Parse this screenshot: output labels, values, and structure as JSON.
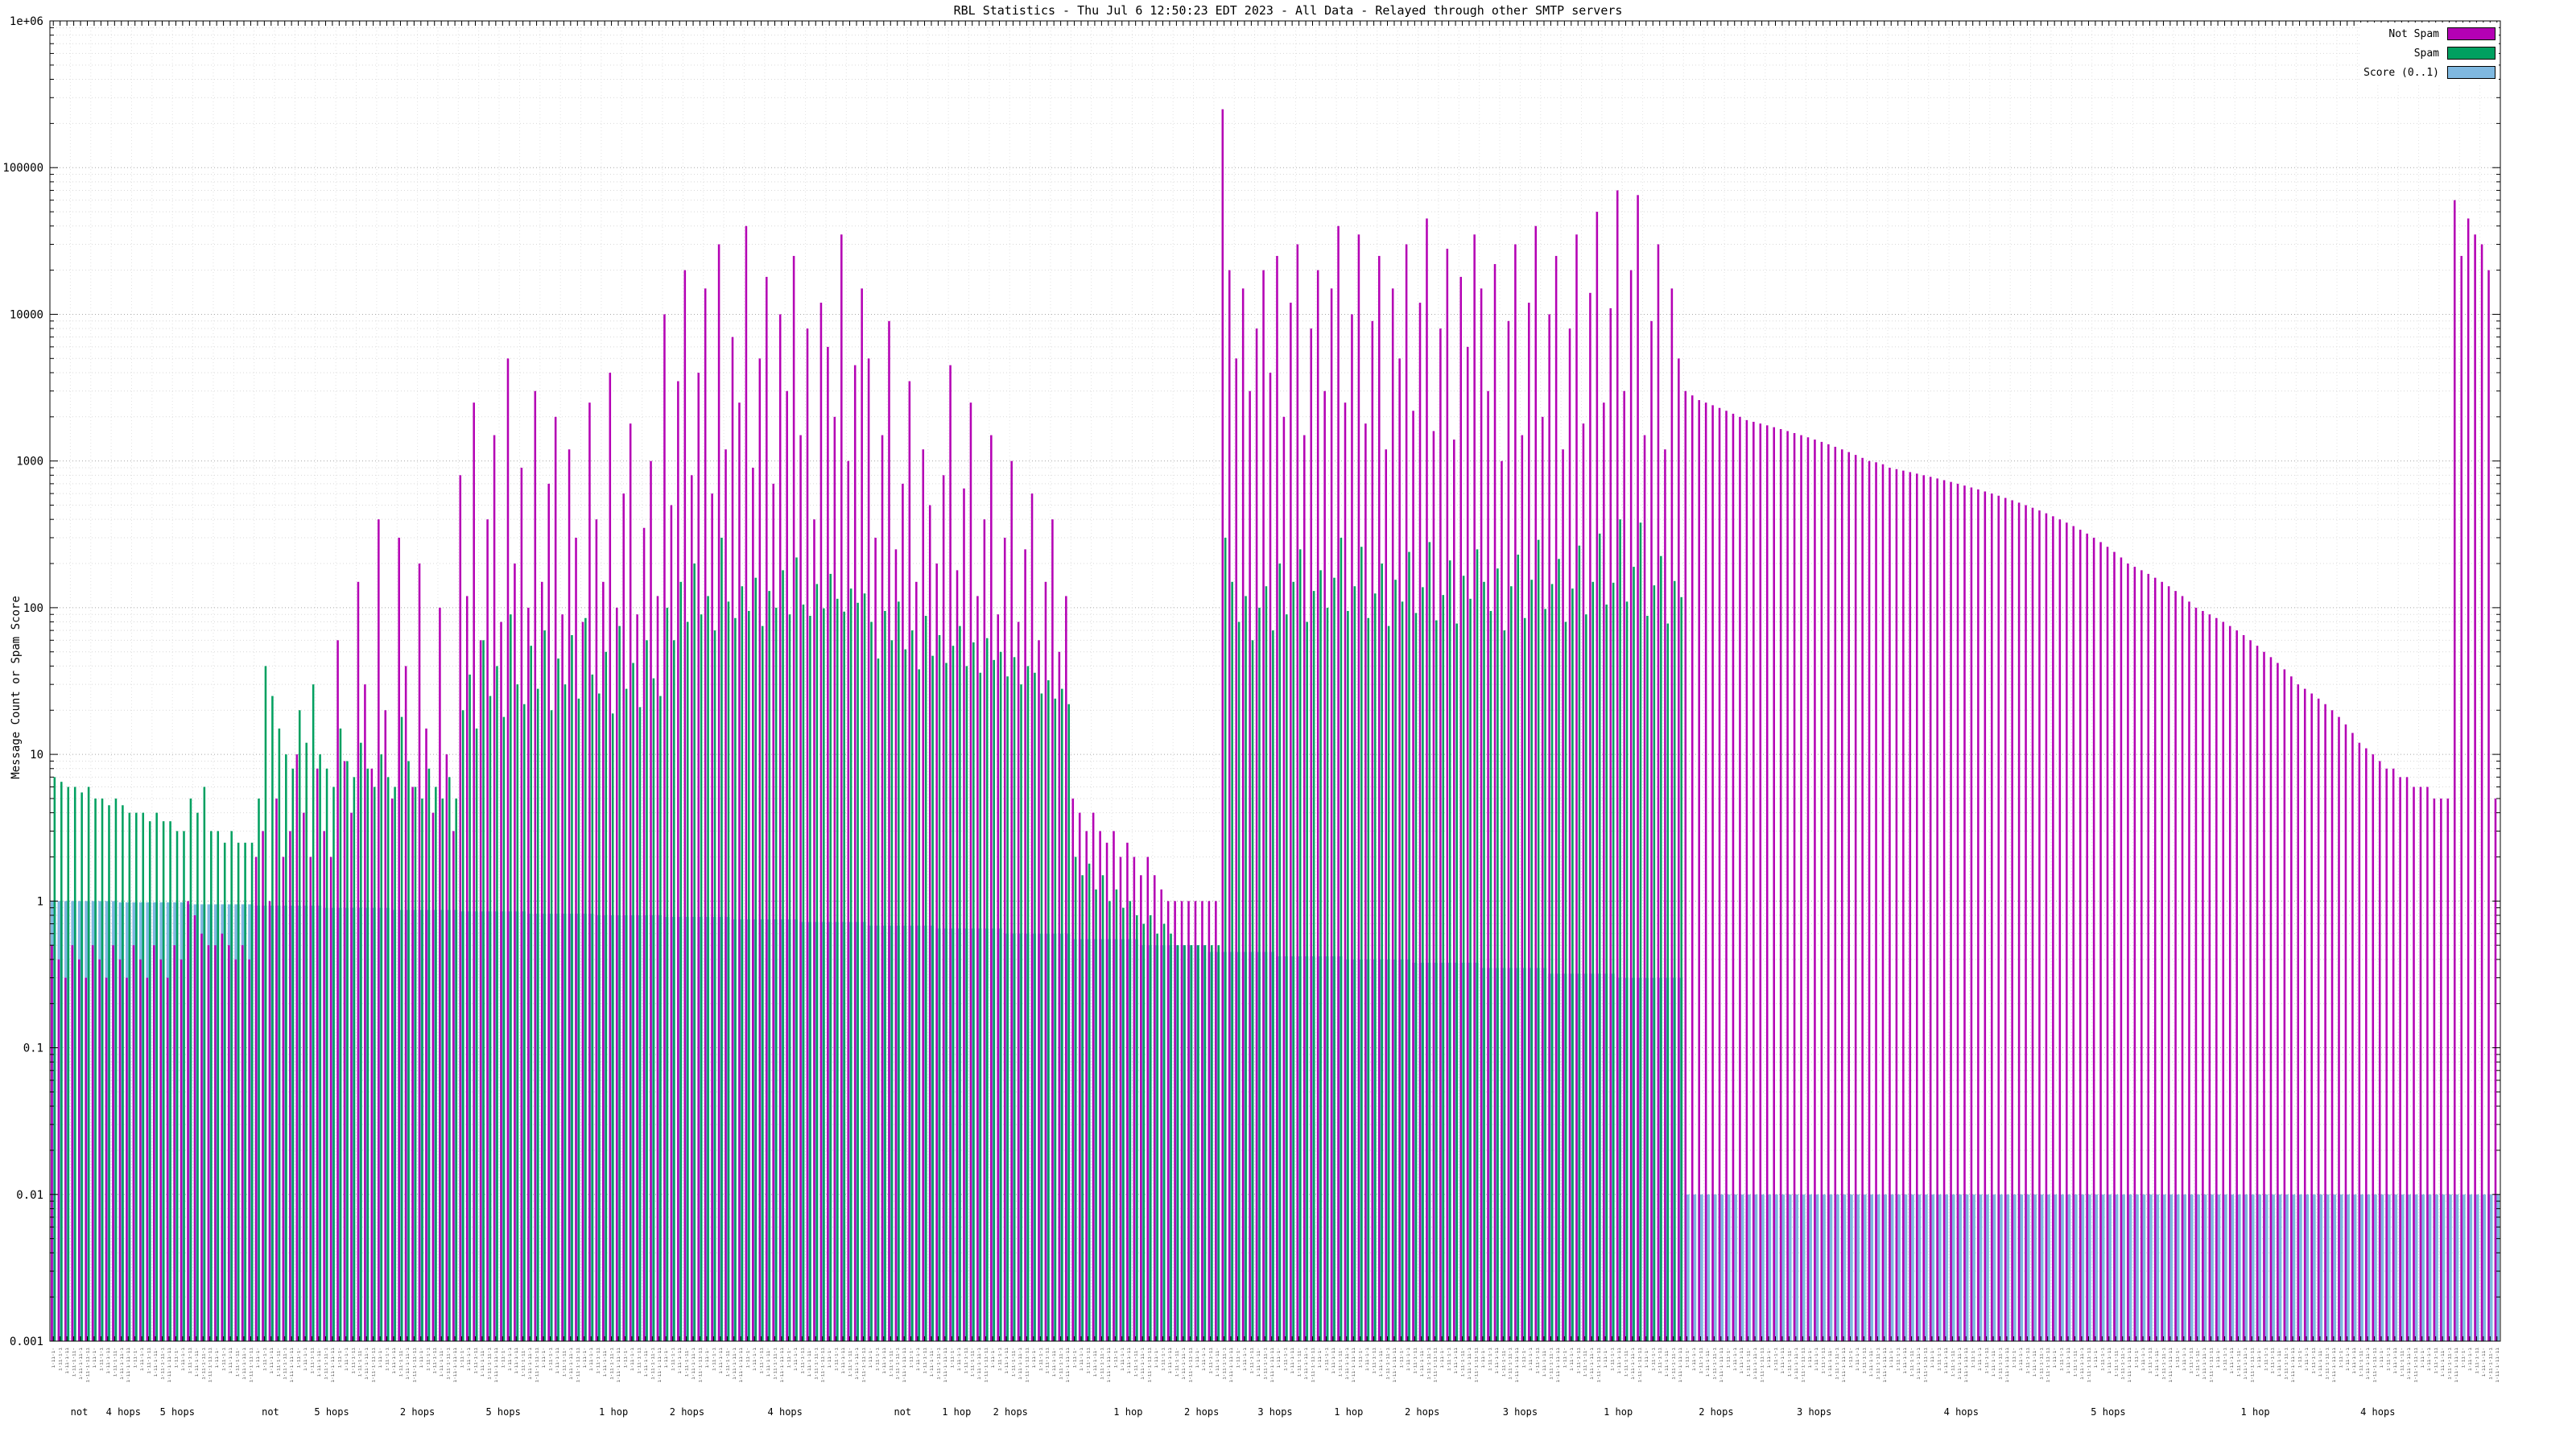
{
  "title": "RBL Statistics - Thu Jul  6 12:50:23 EDT 2023 - All Data - Relayed through other SMTP servers",
  "chart_data": {
    "type": "bar",
    "title": "RBL Statistics - Thu Jul  6 12:50:23 EDT 2023 - All Data - Relayed through other SMTP servers",
    "xlabel": "",
    "ylabel": "Message Count or Spam Score",
    "y_scale": "log",
    "ylim": [
      0.001,
      1000000
    ],
    "y_ticks": [
      "1e+06",
      "100000",
      "10000",
      "1000",
      "100",
      "10",
      "1",
      "0.1",
      "0.01",
      "0.001"
    ],
    "grid": true,
    "legend_position": "top-right",
    "x_labels_illegible": true,
    "x_sublabels": [
      {
        "pos": 0.012,
        "label": "not"
      },
      {
        "pos": 0.03,
        "label": "4 hops"
      },
      {
        "pos": 0.052,
        "label": "5 hops"
      },
      {
        "pos": 0.09,
        "label": "not"
      },
      {
        "pos": 0.115,
        "label": "5 hops"
      },
      {
        "pos": 0.15,
        "label": "2 hops"
      },
      {
        "pos": 0.185,
        "label": "5 hops"
      },
      {
        "pos": 0.23,
        "label": "1 hop"
      },
      {
        "pos": 0.26,
        "label": "2 hops"
      },
      {
        "pos": 0.3,
        "label": "4 hops"
      },
      {
        "pos": 0.348,
        "label": "not"
      },
      {
        "pos": 0.37,
        "label": "1 hop"
      },
      {
        "pos": 0.392,
        "label": "2 hops"
      },
      {
        "pos": 0.44,
        "label": "1 hop"
      },
      {
        "pos": 0.47,
        "label": "2 hops"
      },
      {
        "pos": 0.5,
        "label": "3 hops"
      },
      {
        "pos": 0.53,
        "label": "1 hop"
      },
      {
        "pos": 0.56,
        "label": "2 hops"
      },
      {
        "pos": 0.6,
        "label": "3 hops"
      },
      {
        "pos": 0.64,
        "label": "1 hop"
      },
      {
        "pos": 0.68,
        "label": "2 hops"
      },
      {
        "pos": 0.72,
        "label": "3 hops"
      },
      {
        "pos": 0.78,
        "label": "4 hops"
      },
      {
        "pos": 0.84,
        "label": "5 hops"
      },
      {
        "pos": 0.9,
        "label": "1 hop"
      },
      {
        "pos": 0.95,
        "label": "4 hops"
      }
    ],
    "series": [
      {
        "name": "Not Spam",
        "color": "#b400b4",
        "values": [
          0.5,
          0.4,
          0.3,
          0.5,
          0.4,
          0.3,
          0.5,
          0.4,
          0.3,
          0.5,
          0.4,
          0.3,
          0.5,
          0.4,
          0.3,
          0.5,
          0.4,
          0.3,
          0.5,
          0.4,
          1,
          0.8,
          0.6,
          0.5,
          0.5,
          0.6,
          0.5,
          0.4,
          0.5,
          0.4,
          2,
          3,
          1,
          5,
          2,
          3,
          10,
          4,
          2,
          8,
          3,
          2,
          60,
          9,
          4,
          150,
          30,
          8,
          400,
          20,
          5,
          300,
          40,
          6,
          200,
          15,
          4,
          100,
          10,
          3,
          800,
          120,
          2500,
          60,
          400,
          1500,
          80,
          5000,
          200,
          900,
          100,
          3000,
          150,
          700,
          2000,
          90,
          1200,
          300,
          80,
          2500,
          400,
          150,
          4000,
          100,
          600,
          1800,
          90,
          350,
          1000,
          120,
          10000,
          500,
          3500,
          20000,
          800,
          4000,
          15000,
          600,
          30000,
          1200,
          7000,
          2500,
          40000,
          900,
          5000,
          18000,
          700,
          10000,
          3000,
          25000,
          1500,
          8000,
          400,
          12000,
          6000,
          2000,
          35000,
          1000,
          4500,
          15000,
          5000,
          300,
          1500,
          9000,
          250,
          700,
          3500,
          150,
          1200,
          500,
          200,
          800,
          4500,
          180,
          650,
          2500,
          120,
          400,
          1500,
          90,
          300,
          1000,
          80,
          250,
          600,
          60,
          150,
          400,
          50,
          120,
          5,
          4,
          3,
          4,
          3,
          2.5,
          3,
          2,
          2.5,
          2,
          1.5,
          2,
          1.5,
          1.2,
          1,
          1,
          1,
          1,
          1,
          1,
          1,
          1,
          250000,
          20000,
          5000,
          15000,
          3000,
          8000,
          20000,
          4000,
          25000,
          2000,
          12000,
          30000,
          1500,
          8000,
          20000,
          3000,
          15000,
          40000,
          2500,
          10000,
          35000,
          1800,
          9000,
          25000,
          1200,
          15000,
          5000,
          30000,
          2200,
          12000,
          45000,
          1600,
          8000,
          28000,
          1400,
          18000,
          6000,
          35000,
          15000,
          3000,
          22000,
          1000,
          9000,
          30000,
          1500,
          12000,
          40000,
          2000,
          10000,
          25000,
          1200,
          8000,
          35000,
          1800,
          14000,
          50000,
          2500,
          11000,
          70000,
          3000,
          20000,
          65000,
          1500,
          9000,
          30000,
          1200,
          15000,
          5000,
          3000,
          2800,
          2600,
          2500,
          2400,
          2300,
          2200,
          2100,
          2000,
          1900,
          1850,
          1800,
          1750,
          1700,
          1650,
          1600,
          1550,
          1500,
          1450,
          1400,
          1350,
          1300,
          1250,
          1200,
          1150,
          1100,
          1050,
          1000,
          980,
          950,
          900,
          880,
          860,
          840,
          820,
          800,
          780,
          760,
          740,
          720,
          700,
          680,
          660,
          640,
          620,
          600,
          580,
          560,
          540,
          520,
          500,
          480,
          460,
          440,
          420,
          400,
          380,
          360,
          340,
          320,
          300,
          280,
          260,
          240,
          220,
          200,
          190,
          180,
          170,
          160,
          150,
          140,
          130,
          120,
          110,
          100,
          95,
          90,
          85,
          80,
          75,
          70,
          65,
          60,
          55,
          50,
          46,
          42,
          38,
          34,
          30,
          28,
          26,
          24,
          22,
          20,
          18,
          16,
          14,
          12,
          11,
          10,
          9,
          8,
          8,
          7,
          7,
          6,
          6,
          6,
          5,
          5,
          5,
          60000,
          25000,
          45000,
          35000,
          30000,
          20000,
          5
        ]
      },
      {
        "name": "Spam",
        "color": "#00a060",
        "values": [
          7,
          6.5,
          6,
          6,
          5.5,
          6,
          5,
          5,
          4.5,
          5,
          4.5,
          4,
          4,
          4,
          3.5,
          4,
          3.5,
          3.5,
          3,
          3,
          5,
          4,
          6,
          3,
          3,
          2.5,
          3,
          2.5,
          2.5,
          2.5,
          5,
          40,
          25,
          15,
          10,
          8,
          20,
          12,
          30,
          10,
          8,
          6,
          15,
          9,
          7,
          12,
          8,
          6,
          10,
          7,
          6,
          18,
          9,
          6,
          5,
          8,
          6,
          5,
          7,
          5,
          20,
          35,
          15,
          60,
          25,
          40,
          18,
          90,
          30,
          22,
          55,
          28,
          70,
          20,
          45,
          30,
          65,
          24,
          85,
          35,
          26,
          50,
          19,
          75,
          28,
          42,
          21,
          60,
          33,
          25,
          100,
          60,
          150,
          80,
          200,
          90,
          120,
          70,
          300,
          110,
          85,
          140,
          95,
          160,
          75,
          130,
          100,
          180,
          90,
          220,
          105,
          88,
          145,
          99,
          170,
          115,
          94,
          135,
          108,
          125,
          80,
          45,
          95,
          60,
          110,
          52,
          70,
          38,
          88,
          47,
          65,
          42,
          55,
          75,
          40,
          58,
          36,
          62,
          44,
          50,
          34,
          46,
          30,
          40,
          36,
          26,
          32,
          24,
          28,
          22,
          2,
          1.5,
          1.8,
          1.2,
          1.5,
          1,
          1.2,
          0.9,
          1,
          0.8,
          0.7,
          0.8,
          0.6,
          0.7,
          0.6,
          0.5,
          0.5,
          0.5,
          0.5,
          0.5,
          0.5,
          0.5,
          300,
          150,
          80,
          120,
          60,
          100,
          140,
          70,
          200,
          90,
          150,
          250,
          80,
          130,
          180,
          100,
          160,
          300,
          95,
          140,
          260,
          85,
          125,
          200,
          75,
          155,
          110,
          240,
          92,
          138,
          280,
          82,
          122,
          210,
          78,
          165,
          115,
          250,
          150,
          95,
          185,
          70,
          140,
          230,
          85,
          155,
          290,
          98,
          145,
          215,
          80,
          135,
          265,
          90,
          150,
          320,
          105,
          148,
          400,
          110,
          190,
          380,
          88,
          142,
          225,
          78,
          152,
          118,
          0,
          0,
          0,
          0,
          0,
          0,
          0,
          0,
          0,
          0,
          0,
          0,
          0,
          0,
          0,
          0,
          0,
          0,
          0,
          0,
          0,
          0,
          0,
          0,
          0,
          0,
          0,
          0,
          0,
          0,
          0,
          0,
          0,
          0,
          0,
          0,
          0,
          0,
          0,
          0,
          0,
          0,
          0,
          0,
          0,
          0,
          0,
          0,
          0,
          0,
          0,
          0,
          0,
          0,
          0,
          0,
          0,
          0,
          0,
          0,
          0,
          0,
          0,
          0,
          0,
          0,
          0,
          0,
          0,
          0,
          0,
          0,
          0,
          0,
          0,
          0,
          0,
          0,
          0,
          0,
          0,
          0,
          0,
          0,
          0,
          0,
          0,
          0,
          0,
          0,
          0,
          0,
          0,
          0,
          0,
          0,
          0,
          0,
          0,
          0,
          0,
          0,
          0,
          0,
          0,
          0,
          0,
          0,
          0,
          0,
          0,
          0,
          0,
          0,
          0,
          0,
          0,
          0,
          0,
          0
        ]
      },
      {
        "name": "Score (0..1)",
        "color": "#7fb8e0",
        "values": [
          1,
          1,
          1,
          1,
          1,
          1,
          1,
          1,
          1,
          1,
          0.98,
          0.98,
          0.98,
          0.98,
          0.98,
          0.98,
          0.98,
          0.98,
          0.98,
          0.98,
          0.95,
          0.95,
          0.95,
          0.95,
          0.95,
          0.95,
          0.95,
          0.95,
          0.95,
          0.95,
          0.93,
          0.93,
          0.93,
          0.93,
          0.93,
          0.93,
          0.93,
          0.93,
          0.93,
          0.93,
          0.9,
          0.9,
          0.9,
          0.9,
          0.9,
          0.9,
          0.9,
          0.9,
          0.9,
          0.9,
          0.87,
          0.87,
          0.87,
          0.87,
          0.87,
          0.87,
          0.87,
          0.87,
          0.87,
          0.87,
          0.85,
          0.85,
          0.85,
          0.85,
          0.85,
          0.85,
          0.85,
          0.85,
          0.85,
          0.85,
          0.82,
          0.82,
          0.82,
          0.82,
          0.82,
          0.82,
          0.82,
          0.82,
          0.82,
          0.82,
          0.8,
          0.8,
          0.8,
          0.8,
          0.8,
          0.8,
          0.8,
          0.8,
          0.8,
          0.8,
          0.78,
          0.78,
          0.78,
          0.78,
          0.78,
          0.78,
          0.78,
          0.78,
          0.78,
          0.78,
          0.75,
          0.75,
          0.75,
          0.75,
          0.75,
          0.75,
          0.75,
          0.75,
          0.75,
          0.75,
          0.72,
          0.72,
          0.72,
          0.72,
          0.72,
          0.72,
          0.72,
          0.72,
          0.72,
          0.72,
          0.68,
          0.68,
          0.68,
          0.68,
          0.68,
          0.68,
          0.68,
          0.68,
          0.68,
          0.68,
          0.65,
          0.65,
          0.65,
          0.65,
          0.65,
          0.65,
          0.65,
          0.65,
          0.65,
          0.65,
          0.6,
          0.6,
          0.6,
          0.6,
          0.6,
          0.6,
          0.6,
          0.6,
          0.6,
          0.6,
          0.55,
          0.55,
          0.55,
          0.55,
          0.55,
          0.55,
          0.55,
          0.55,
          0.55,
          0.55,
          0.5,
          0.5,
          0.5,
          0.5,
          0.5,
          0.5,
          0.5,
          0.5,
          0.5,
          0.5,
          0.45,
          0.45,
          0.45,
          0.45,
          0.45,
          0.45,
          0.45,
          0.45,
          0.45,
          0.45,
          0.42,
          0.42,
          0.42,
          0.42,
          0.42,
          0.42,
          0.42,
          0.42,
          0.42,
          0.42,
          0.4,
          0.4,
          0.4,
          0.4,
          0.4,
          0.4,
          0.4,
          0.4,
          0.4,
          0.4,
          0.38,
          0.38,
          0.38,
          0.38,
          0.38,
          0.38,
          0.38,
          0.38,
          0.38,
          0.38,
          0.35,
          0.35,
          0.35,
          0.35,
          0.35,
          0.35,
          0.35,
          0.35,
          0.35,
          0.35,
          0.32,
          0.32,
          0.32,
          0.32,
          0.32,
          0.32,
          0.32,
          0.32,
          0.32,
          0.32,
          0.3,
          0.3,
          0.3,
          0.3,
          0.3,
          0.3,
          0.3,
          0.3,
          0.3,
          0.3,
          0.01,
          0.01,
          0.01,
          0.01,
          0.01,
          0.01,
          0.01,
          0.01,
          0.01,
          0.01,
          0.01,
          0.01,
          0.01,
          0.01,
          0.01,
          0.01,
          0.01,
          0.01,
          0.01,
          0.01,
          0.01,
          0.01,
          0.01,
          0.01,
          0.01,
          0.01,
          0.01,
          0.01,
          0.01,
          0.01,
          0.01,
          0.01,
          0.01,
          0.01,
          0.01,
          0.01,
          0.01,
          0.01,
          0.01,
          0.01,
          0.01,
          0.01,
          0.01,
          0.01,
          0.01,
          0.01,
          0.01,
          0.01,
          0.01,
          0.01,
          0.01,
          0.01,
          0.01,
          0.01,
          0.01,
          0.01,
          0.01,
          0.01,
          0.01,
          0.01,
          0.01,
          0.01,
          0.01,
          0.01,
          0.01,
          0.01,
          0.01,
          0.01,
          0.01,
          0.01,
          0.01,
          0.01,
          0.01,
          0.01,
          0.01,
          0.01,
          0.01,
          0.01,
          0.01,
          0.01,
          0.01,
          0.01,
          0.01,
          0.01,
          0.01,
          0.01,
          0.01,
          0.01,
          0.01,
          0.01,
          0.01,
          0.01,
          0.01,
          0.01,
          0.01,
          0.01,
          0.01,
          0.01,
          0.01,
          0.01,
          0.01,
          0.01,
          0.01,
          0.01,
          0.01,
          0.01,
          0.01,
          0.01,
          0.01,
          0.01,
          0.01,
          0.01,
          0.01,
          0.01,
          0.01,
          0.01,
          0.01,
          0.01,
          0.01,
          0.01
        ]
      }
    ]
  }
}
